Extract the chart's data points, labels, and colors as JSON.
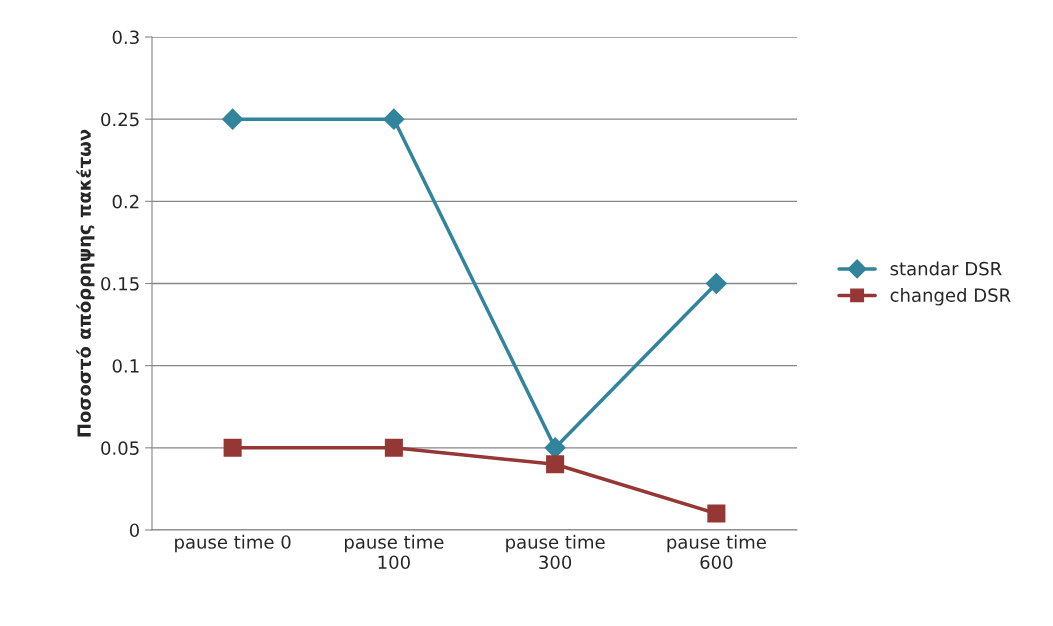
{
  "chart_data": {
    "type": "line",
    "ylabel": "Ποσοστό απόρρηψης πακέτων",
    "categories": [
      "pause time 0",
      "pause time\n100",
      "pause time\n300",
      "pause time\n600"
    ],
    "series": [
      {
        "name": "standar DSR",
        "color": "#31849b",
        "marker": "diamond",
        "values": [
          0.25,
          0.25,
          0.05,
          0.15
        ]
      },
      {
        "name": "changed DSR",
        "color": "#953735",
        "marker": "square",
        "values": [
          0.05,
          0.05,
          0.04,
          0.01
        ]
      }
    ],
    "ylim": [
      0,
      0.3
    ],
    "yticks": [
      0,
      0.05,
      0.1,
      0.15,
      0.2,
      0.25,
      0.3
    ],
    "grid": "y",
    "legend": "right"
  }
}
